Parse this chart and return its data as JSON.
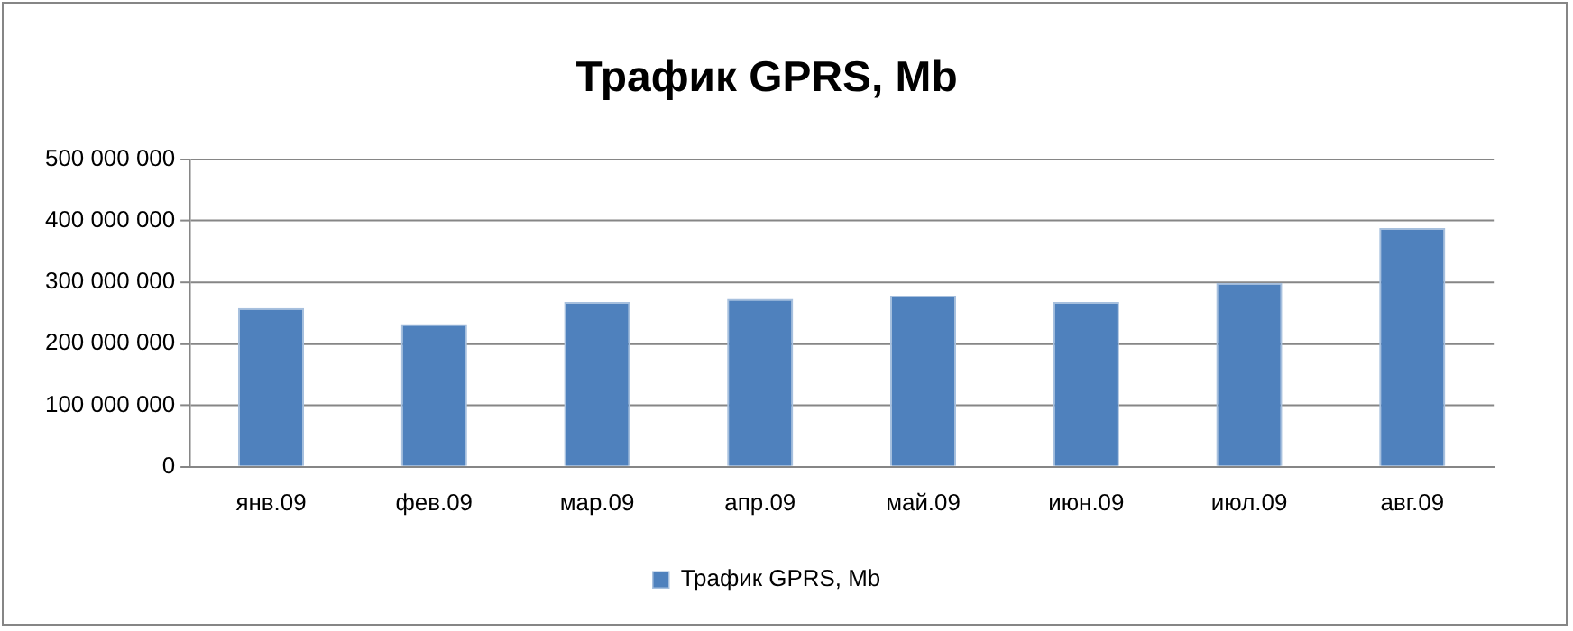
{
  "chart_data": {
    "type": "bar",
    "title": "Трафик GPRS, Mb",
    "categories": [
      "янв.09",
      "фев.09",
      "мар.09",
      "апр.09",
      "май.09",
      "июн.09",
      "июл.09",
      "авг.09"
    ],
    "series": [
      {
        "name": "Трафик GPRS, Mb",
        "color": "#4f81bd",
        "values": [
          258000000,
          232000000,
          268000000,
          273000000,
          278000000,
          268000000,
          299000000,
          388000000
        ]
      }
    ],
    "ylim": [
      0,
      500000000
    ],
    "yticks": [
      {
        "value": 0,
        "label": "0"
      },
      {
        "value": 100000000,
        "label": "100 000 000"
      },
      {
        "value": 200000000,
        "label": "200 000 000"
      },
      {
        "value": 300000000,
        "label": "300 000 000"
      },
      {
        "value": 400000000,
        "label": "400 000 000"
      },
      {
        "value": 500000000,
        "label": "500 000 000"
      }
    ],
    "grid": "y",
    "legend": "bottom"
  }
}
